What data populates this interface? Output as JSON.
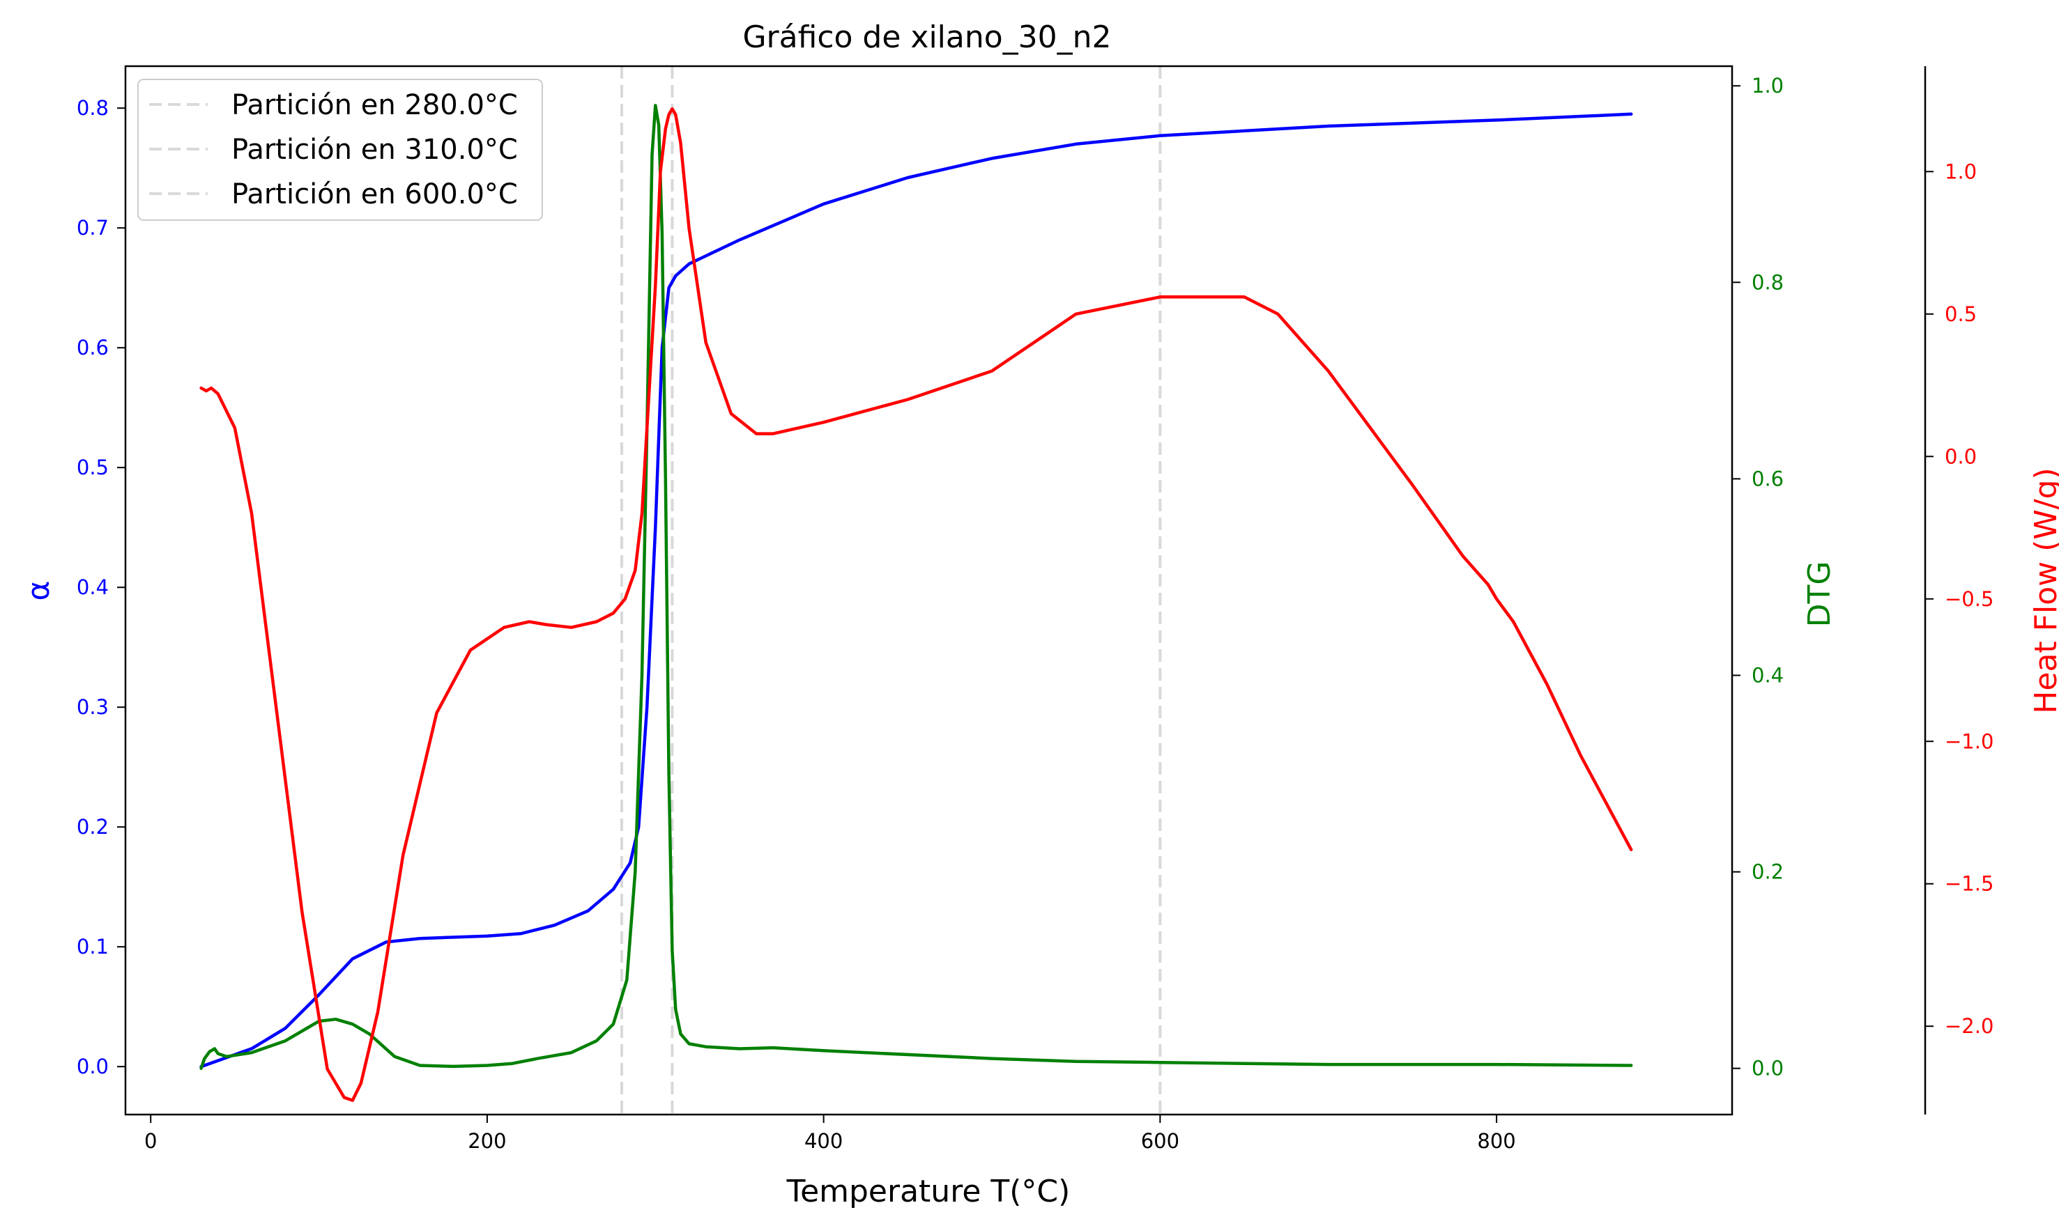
{
  "chart_data": {
    "type": "line",
    "title": "Gráfico de xilano_30_n2",
    "xlabel": "Temperature T(°C)",
    "xlim": [
      -15,
      940
    ],
    "x_ticks": [
      0,
      200,
      400,
      600,
      800
    ],
    "x_tick_labels": [
      "0",
      "200",
      "400",
      "600",
      "800"
    ],
    "axes": {
      "alpha": {
        "label": "α",
        "color": "#0000ff",
        "ylim": [
          -0.04,
          0.835
        ],
        "ticks": [
          0.0,
          0.1,
          0.2,
          0.3,
          0.4,
          0.5,
          0.6,
          0.7,
          0.8
        ],
        "tick_labels": [
          "0.0",
          "0.1",
          "0.2",
          "0.3",
          "0.4",
          "0.5",
          "0.6",
          "0.7",
          "0.8"
        ]
      },
      "dtg": {
        "label": "DTG",
        "color": "#008000",
        "ylim": [
          -0.047,
          1.02
        ],
        "ticks": [
          0.0,
          0.2,
          0.4,
          0.6,
          0.8,
          1.0
        ],
        "tick_labels": [
          "0.0",
          "0.2",
          "0.4",
          "0.6",
          "0.8",
          "1.0"
        ]
      },
      "heat_flow": {
        "label": "Heat Flow (W/g)",
        "color": "#ff0000",
        "ylim": [
          -2.31,
          1.37
        ],
        "ticks": [
          -2.0,
          -1.5,
          -1.0,
          -0.5,
          0.0,
          0.5,
          1.0
        ],
        "tick_labels": [
          "−2.0",
          "−1.5",
          "−1.0",
          "−0.5",
          "0.0",
          "0.5",
          "1.0"
        ]
      }
    },
    "partitions": [
      {
        "x": 280.0,
        "label": "Partición en 280.0°C"
      },
      {
        "x": 310.0,
        "label": "Partición en 310.0°C"
      },
      {
        "x": 600.0,
        "label": "Partición en 600.0°C"
      }
    ],
    "legend_position": "top-left",
    "series": [
      {
        "name": "α",
        "axis": "alpha",
        "color": "#0000ff",
        "x": [
          30,
          40,
          60,
          80,
          100,
          120,
          140,
          160,
          200,
          220,
          240,
          260,
          275,
          285,
          290,
          295,
          300,
          304,
          308,
          312,
          320,
          350,
          400,
          450,
          500,
          550,
          600,
          700,
          800,
          880
        ],
        "y": [
          0.0,
          0.005,
          0.015,
          0.032,
          0.06,
          0.09,
          0.104,
          0.107,
          0.109,
          0.111,
          0.118,
          0.13,
          0.148,
          0.17,
          0.2,
          0.3,
          0.45,
          0.6,
          0.65,
          0.66,
          0.67,
          0.69,
          0.72,
          0.742,
          0.758,
          0.77,
          0.777,
          0.785,
          0.79,
          0.795
        ]
      },
      {
        "name": "DTG",
        "axis": "dtg",
        "color": "#008000",
        "x": [
          30,
          32,
          35,
          38,
          40,
          45,
          60,
          80,
          100,
          110,
          120,
          130,
          145,
          160,
          180,
          200,
          215,
          230,
          250,
          265,
          275,
          283,
          288,
          292,
          295,
          298,
          300,
          302,
          304,
          306,
          308,
          310,
          312,
          315,
          320,
          330,
          350,
          370,
          400,
          500,
          550,
          600,
          700,
          800,
          880
        ],
        "y": [
          0.0,
          0.01,
          0.017,
          0.02,
          0.015,
          0.012,
          0.016,
          0.028,
          0.048,
          0.05,
          0.045,
          0.035,
          0.012,
          0.003,
          0.002,
          0.003,
          0.005,
          0.01,
          0.016,
          0.028,
          0.045,
          0.09,
          0.2,
          0.4,
          0.65,
          0.93,
          0.98,
          0.96,
          0.85,
          0.6,
          0.3,
          0.12,
          0.06,
          0.035,
          0.025,
          0.022,
          0.02,
          0.021,
          0.018,
          0.01,
          0.007,
          0.006,
          0.004,
          0.004,
          0.003
        ]
      },
      {
        "name": "Heat Flow",
        "axis": "heat_flow",
        "color": "#ff0000",
        "x": [
          30,
          33,
          36,
          40,
          50,
          60,
          75,
          90,
          105,
          115,
          120,
          125,
          135,
          150,
          170,
          190,
          210,
          225,
          235,
          250,
          265,
          275,
          282,
          288,
          292,
          296,
          300,
          303,
          306,
          308,
          310,
          312,
          315,
          320,
          330,
          345,
          360,
          370,
          400,
          450,
          500,
          550,
          600,
          650,
          670,
          700,
          750,
          780,
          795,
          800,
          810,
          830,
          850,
          880
        ],
        "y": [
          0.24,
          0.23,
          0.24,
          0.22,
          0.1,
          -0.2,
          -0.9,
          -1.6,
          -2.15,
          -2.25,
          -2.26,
          -2.2,
          -1.95,
          -1.4,
          -0.9,
          -0.68,
          -0.6,
          -0.58,
          -0.59,
          -0.6,
          -0.58,
          -0.55,
          -0.5,
          -0.4,
          -0.2,
          0.2,
          0.6,
          1.0,
          1.15,
          1.2,
          1.22,
          1.2,
          1.1,
          0.8,
          0.4,
          0.15,
          0.08,
          0.08,
          0.12,
          0.2,
          0.3,
          0.5,
          0.56,
          0.56,
          0.5,
          0.3,
          -0.1,
          -0.35,
          -0.45,
          -0.5,
          -0.58,
          -0.8,
          -1.05,
          -1.38
        ]
      }
    ]
  }
}
